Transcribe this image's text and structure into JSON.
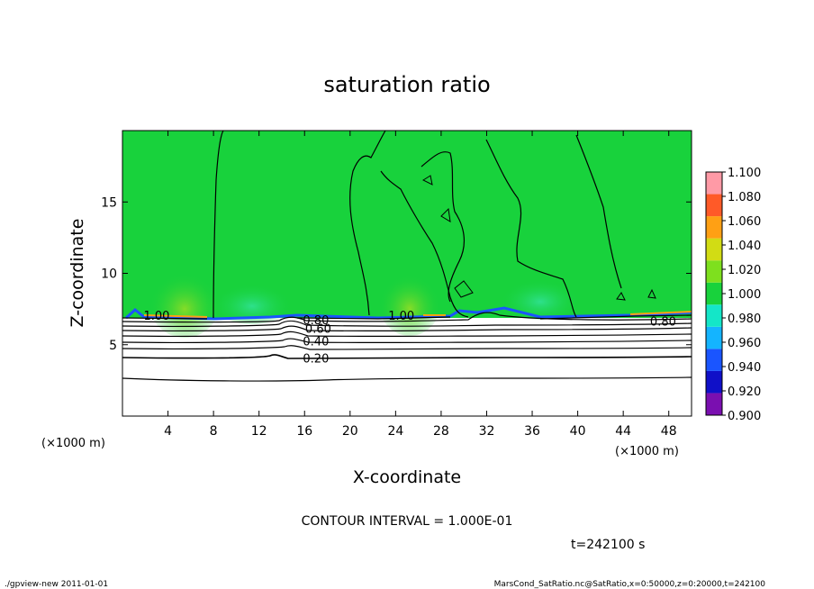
{
  "chart_data": {
    "type": "contour",
    "title": "saturation ratio",
    "xlabel": "X-coordinate",
    "ylabel": "Z-coordinate",
    "x_unit": "(×1000 m)",
    "y_unit": "(×1000 m)",
    "xlim": [
      0,
      50
    ],
    "ylim": [
      0,
      20
    ],
    "x_ticks": [
      4,
      8,
      12,
      16,
      20,
      24,
      28,
      32,
      36,
      40,
      44,
      48
    ],
    "y_ticks": [
      5,
      10,
      15
    ],
    "contour_interval": "CONTOUR INTERVAL = 1.000E-01",
    "time_label": "t=242100 s",
    "contour_labels": [
      {
        "text": "1.00",
        "x": 3.0,
        "y": 7.0
      },
      {
        "text": "0.80",
        "x": 17.0,
        "y": 6.7
      },
      {
        "text": "0.60",
        "x": 17.2,
        "y": 6.1
      },
      {
        "text": "0.40",
        "x": 17.0,
        "y": 5.2
      },
      {
        "text": "0.20",
        "x": 17.0,
        "y": 4.0
      },
      {
        "text": "1.00",
        "x": 24.5,
        "y": 7.0
      },
      {
        "text": "0.80",
        "x": 47.5,
        "y": 6.6
      }
    ],
    "colorbar": {
      "levels": [
        0.9,
        0.92,
        0.94,
        0.96,
        0.98,
        1.0,
        1.02,
        1.04,
        1.06,
        1.08,
        1.1
      ],
      "labels": [
        "1.100",
        "1.080",
        "1.060",
        "1.040",
        "1.020",
        "1.000",
        "0.980",
        "0.960",
        "0.940",
        "0.920",
        "0.900"
      ],
      "colors": [
        "#7a0fb0",
        "#1010c8",
        "#1a55ff",
        "#14b4ff",
        "#14e6c8",
        "#18d23c",
        "#7ee01e",
        "#d2dc14",
        "#ffa014",
        "#ff5a28",
        "#ff9aa6"
      ]
    },
    "fill_dominant_color": "#18d23c"
  },
  "footer": {
    "left": "./gpview-new  2011-01-01",
    "right": "MarsCond_SatRatio.nc@SatRatio,x=0:50000,z=0:20000,t=242100"
  }
}
